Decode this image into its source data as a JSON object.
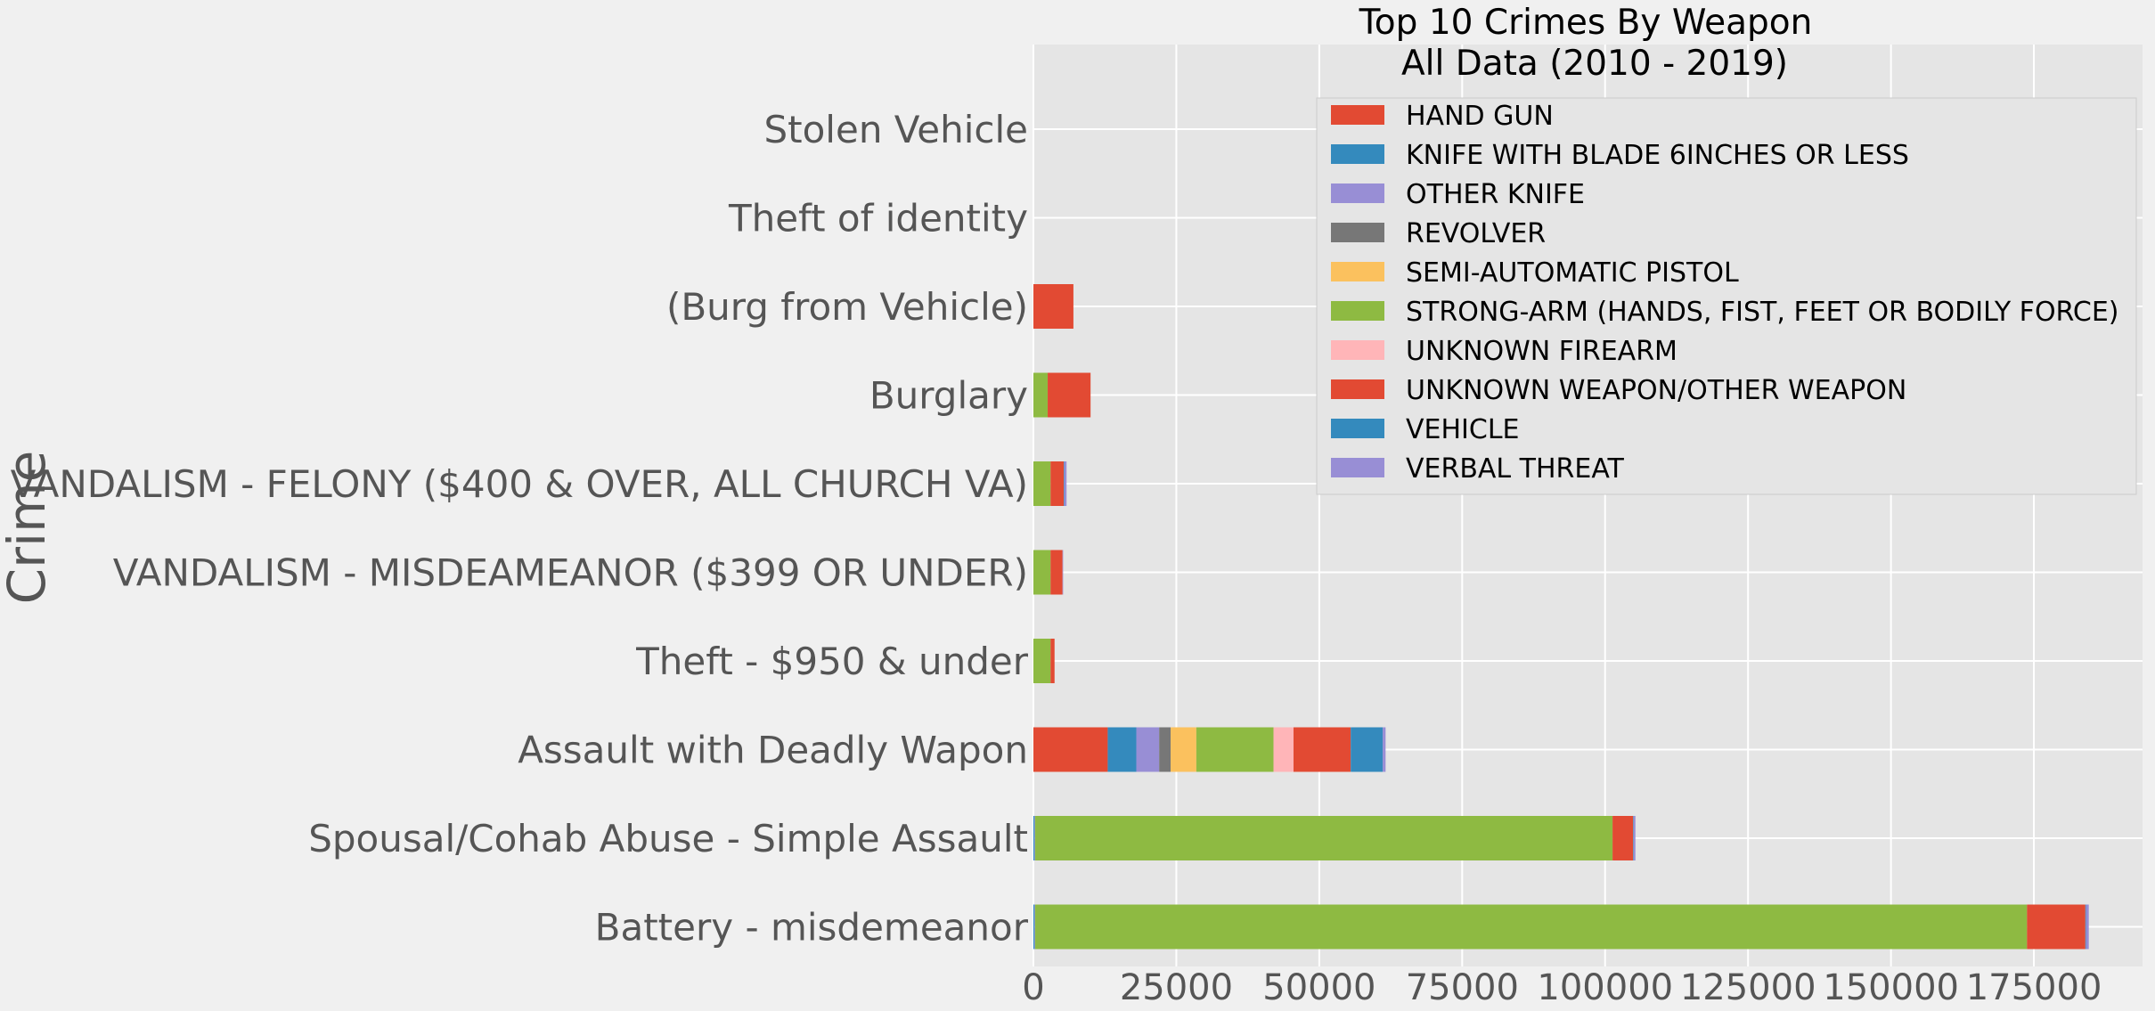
{
  "chart_data": {
    "type": "bar",
    "orientation": "horizontal",
    "stacked": true,
    "title": [
      "Top 10 Crimes By Weapon",
      "All Data (2010 - 2019)"
    ],
    "xlabel": "",
    "ylabel": "Crime",
    "xlim": [
      0,
      194000
    ],
    "xticks": [
      0,
      25000,
      50000,
      75000,
      100000,
      125000,
      150000,
      175000
    ],
    "xtick_labels": [
      "0",
      "25000",
      "50000",
      "75000",
      "100000",
      "125000",
      "150000",
      "175000"
    ],
    "grid": true,
    "legend_position": "upper-right",
    "categories": [
      "Stolen Vehicle",
      "Theft of identity",
      "(Burg from Vehicle)",
      "Burglary",
      "VANDALISM - FELONY ($400 & OVER, ALL CHURCH VA)",
      "VANDALISM - MISDEAMEANOR ($399 OR UNDER)",
      "Theft - $950 & under",
      "Assault with Deadly Wapon",
      "Spousal/Cohab Abuse - Simple Assault",
      "Battery - misdemeanor"
    ],
    "series": [
      {
        "name": "HAND GUN",
        "color": "#e24a33",
        "values": [
          0,
          0,
          0,
          0,
          0,
          0,
          0,
          13000,
          0,
          0
        ]
      },
      {
        "name": "KNIFE WITH BLADE 6INCHES OR LESS",
        "color": "#348abd",
        "values": [
          0,
          0,
          0,
          0,
          0,
          0,
          0,
          5000,
          200,
          200
        ]
      },
      {
        "name": "OTHER KNIFE",
        "color": "#988ed5",
        "values": [
          0,
          0,
          0,
          0,
          0,
          0,
          0,
          4000,
          100,
          100
        ]
      },
      {
        "name": "REVOLVER",
        "color": "#777777",
        "values": [
          0,
          0,
          0,
          0,
          0,
          0,
          0,
          2000,
          0,
          0
        ]
      },
      {
        "name": "SEMI-AUTOMATIC PISTOL",
        "color": "#fbc15e",
        "values": [
          0,
          0,
          0,
          0,
          0,
          0,
          0,
          4500,
          0,
          0
        ]
      },
      {
        "name": "STRONG-ARM (HANDS, FIST, FEET OR BODILY FORCE)",
        "color": "#8eba42",
        "values": [
          0,
          0,
          0,
          2500,
          3000,
          3000,
          3000,
          13500,
          101000,
          173500
        ]
      },
      {
        "name": "UNKNOWN FIREARM",
        "color": "#ffb5b8",
        "values": [
          0,
          0,
          0,
          0,
          0,
          0,
          0,
          3500,
          0,
          0
        ]
      },
      {
        "name": "UNKNOWN WEAPON/OTHER WEAPON",
        "color": "#e24a33",
        "values": [
          0,
          0,
          7000,
          7500,
          2300,
          2100,
          700,
          10000,
          3600,
          10200
        ]
      },
      {
        "name": "VEHICLE",
        "color": "#348abd",
        "values": [
          0,
          0,
          0,
          0,
          100,
          0,
          0,
          5600,
          100,
          100
        ]
      },
      {
        "name": "VERBAL THREAT",
        "color": "#988ed5",
        "values": [
          0,
          0,
          0,
          0,
          400,
          100,
          0,
          500,
          300,
          500
        ]
      }
    ]
  }
}
